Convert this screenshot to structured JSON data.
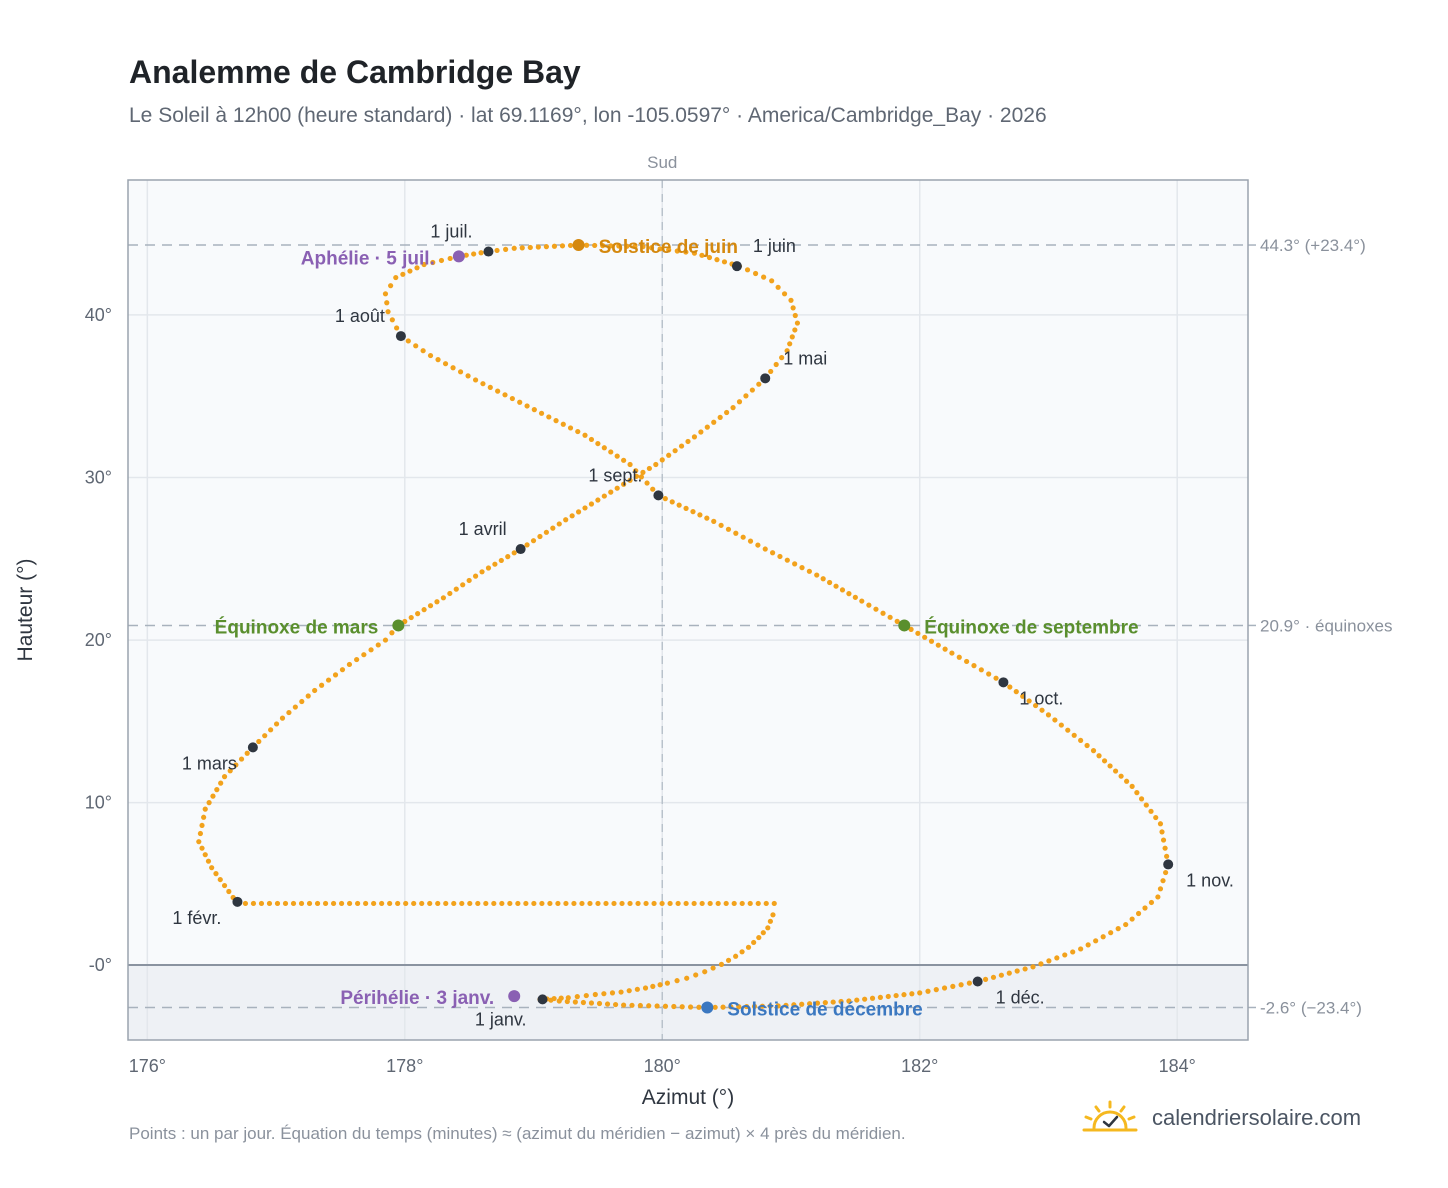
{
  "title": "Analemme de Cambridge Bay",
  "subtitle": "Le Soleil à 12h00 (heure standard) · lat 69.1169°, lon -105.0597° · America/Cambridge_Bay · 2026",
  "footnote": "Points : un par jour. Équation du temps (minutes) ≈ (azimut du méridien − azimut) × 4 près du méridien.",
  "brand": {
    "name": "calendriersolaire.com",
    "icon": "sun-check-icon"
  },
  "chart_data": {
    "type": "scatter",
    "xlabel": "Azimut (°)",
    "ylabel": "Hauteur (°)",
    "xlim": [
      175.85,
      184.55
    ],
    "ylim": [
      -4.6,
      48.3
    ],
    "xticks": [
      {
        "value": 176,
        "label": "176°"
      },
      {
        "value": 178,
        "label": "178°"
      },
      {
        "value": 180,
        "label": "180°"
      },
      {
        "value": 182,
        "label": "182°"
      },
      {
        "value": 184,
        "label": "184°"
      }
    ],
    "yticks": [
      {
        "value": 0,
        "label": "-0°"
      },
      {
        "value": 10,
        "label": "10°"
      },
      {
        "value": 20,
        "label": "20°"
      },
      {
        "value": 30,
        "label": "30°"
      },
      {
        "value": 40,
        "label": "40°"
      }
    ],
    "grid": true,
    "south_line": {
      "azimuth": 180,
      "label": "Sud"
    },
    "horizon": {
      "altitude": 0
    },
    "reference_lines": [
      {
        "value": 44.3,
        "label": "44.3° (+23.4°)"
      },
      {
        "value": 20.9,
        "label": "20.9° · équinoxes"
      },
      {
        "value": -2.6,
        "label": "-2.6° (−23.4°)"
      }
    ],
    "series": [
      {
        "kind": "daily",
        "color": "#f2a21c",
        "points": [
          [
            179.05,
            -2.1
          ],
          [
            179.27,
            -2.0
          ],
          [
            179.48,
            -1.8
          ],
          [
            179.68,
            -1.65
          ],
          [
            179.87,
            -1.4
          ],
          [
            180.04,
            -1.1
          ],
          [
            180.19,
            -0.8
          ],
          [
            180.33,
            -0.4
          ],
          [
            180.46,
            0.05
          ],
          [
            180.57,
            0.55
          ],
          [
            180.67,
            1.1
          ],
          [
            180.75,
            1.7
          ],
          [
            180.82,
            2.3
          ],
          [
            180.86,
            3.1
          ],
          [
            180.87,
            3.8
          ],
          [
            176.7,
            3.8
          ],
          [
            176.5,
            6.0
          ],
          [
            176.4,
            7.6
          ],
          [
            176.45,
            9.6
          ],
          [
            176.6,
            11.6
          ],
          [
            176.82,
            13.4
          ],
          [
            177.05,
            15.2
          ],
          [
            177.3,
            16.9
          ],
          [
            177.57,
            18.5
          ],
          [
            177.85,
            20.0
          ],
          [
            177.95,
            20.9
          ],
          [
            178.3,
            22.6
          ],
          [
            178.6,
            24.2
          ],
          [
            178.9,
            25.6
          ],
          [
            179.25,
            27.4
          ],
          [
            179.6,
            29.1
          ],
          [
            179.95,
            30.8
          ],
          [
            180.25,
            32.5
          ],
          [
            180.55,
            34.3
          ],
          [
            180.8,
            36.1
          ],
          [
            180.97,
            37.8
          ],
          [
            181.05,
            39.5
          ],
          [
            181.0,
            40.9
          ],
          [
            180.85,
            42.1
          ],
          [
            180.6,
            43.0
          ],
          [
            180.25,
            43.8
          ],
          [
            179.85,
            44.2
          ],
          [
            179.35,
            44.3
          ],
          [
            178.85,
            44.1
          ],
          [
            178.65,
            43.9
          ],
          [
            178.42,
            43.6
          ],
          [
            178.15,
            43.1
          ],
          [
            177.93,
            42.3
          ],
          [
            177.85,
            41.3
          ],
          [
            177.87,
            40.2
          ],
          [
            177.97,
            38.7
          ],
          [
            178.2,
            37.5
          ],
          [
            178.55,
            36.0
          ],
          [
            178.95,
            34.4
          ],
          [
            179.4,
            32.6
          ],
          [
            179.75,
            30.8
          ],
          [
            179.97,
            28.9
          ],
          [
            180.4,
            27.3
          ],
          [
            180.8,
            25.6
          ],
          [
            181.2,
            24.0
          ],
          [
            181.55,
            22.4
          ],
          [
            181.88,
            20.9
          ],
          [
            182.25,
            19.2
          ],
          [
            182.65,
            17.4
          ],
          [
            183.0,
            15.4
          ],
          [
            183.35,
            13.2
          ],
          [
            183.65,
            11.0
          ],
          [
            183.87,
            8.7
          ],
          [
            183.93,
            6.2
          ],
          [
            183.85,
            4.2
          ],
          [
            183.6,
            2.5
          ],
          [
            183.25,
            1.0
          ],
          [
            182.88,
            -0.1
          ],
          [
            182.45,
            -1.0
          ],
          [
            182.0,
            -1.7
          ],
          [
            181.45,
            -2.2
          ],
          [
            180.9,
            -2.5
          ],
          [
            180.35,
            -2.6
          ],
          [
            179.7,
            -2.45
          ],
          [
            179.2,
            -2.2
          ],
          [
            179.07,
            -2.1
          ]
        ]
      },
      {
        "kind": "month",
        "color": "#2f3640",
        "points": [
          {
            "x": 179.07,
            "y": -2.1,
            "label": "1 janv."
          },
          {
            "x": 176.7,
            "y": 3.9,
            "label": "1 févr."
          },
          {
            "x": 176.82,
            "y": 13.4,
            "label": "1 mars"
          },
          {
            "x": 178.9,
            "y": 25.6,
            "label": "1 avril"
          },
          {
            "x": 180.8,
            "y": 36.1,
            "label": "1 mai"
          },
          {
            "x": 180.58,
            "y": 43.0,
            "label": "1 juin"
          },
          {
            "x": 178.65,
            "y": 43.9,
            "label": "1 juil."
          },
          {
            "x": 177.97,
            "y": 38.7,
            "label": "1 août"
          },
          {
            "x": 179.97,
            "y": 28.9,
            "label": "1 sept."
          },
          {
            "x": 182.65,
            "y": 17.4,
            "label": "1 oct."
          },
          {
            "x": 183.93,
            "y": 6.2,
            "label": "1 nov."
          },
          {
            "x": 182.45,
            "y": -1.0,
            "label": "1 déc."
          }
        ]
      },
      {
        "kind": "event",
        "points": [
          {
            "x": 177.95,
            "y": 20.9,
            "label": "Équinoxe de mars",
            "color": "#5a8f2e"
          },
          {
            "x": 181.88,
            "y": 20.9,
            "label": "Équinoxe de septembre",
            "color": "#5a8f2e"
          },
          {
            "x": 179.35,
            "y": 44.3,
            "label": "Solstice de juin",
            "color": "#d4880e"
          },
          {
            "x": 180.35,
            "y": -2.6,
            "label": "Solstice de décembre",
            "color": "#3b78c0"
          },
          {
            "x": 178.42,
            "y": 43.6,
            "label": "Aphélie · 5 juil.",
            "color": "#8a60b3"
          },
          {
            "x": 178.85,
            "y": -1.9,
            "label": "Périhélie · 3 janv.",
            "color": "#8a60b3"
          }
        ]
      }
    ]
  }
}
